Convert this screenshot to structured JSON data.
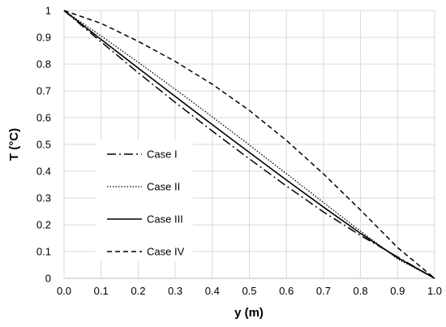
{
  "chart_data": {
    "type": "line",
    "xlabel": "y (m)",
    "ylabel": "T (°C)",
    "xlim": [
      0,
      1
    ],
    "ylim": [
      0,
      1
    ],
    "x_ticks": [
      "0.0",
      "0.1",
      "0.2",
      "0.3",
      "0.4",
      "0.5",
      "0.6",
      "0.7",
      "0.8",
      "0.9",
      "1.0"
    ],
    "y_ticks": [
      "0",
      "0.1",
      "0.2",
      "0.3",
      "0.4",
      "0.5",
      "0.6",
      "0.7",
      "0.8",
      "0.9",
      "1"
    ],
    "grid": "vertical and horizontal",
    "legend_position": "left-center",
    "x": [
      0,
      0.1,
      0.2,
      0.3,
      0.4,
      0.5,
      0.6,
      0.7,
      0.8,
      0.9,
      1.0
    ],
    "series": [
      {
        "name": "Case I",
        "style": "dash-dot",
        "values": [
          1.0,
          0.883,
          0.768,
          0.657,
          0.55,
          0.446,
          0.345,
          0.248,
          0.16,
          0.08,
          0.0
        ]
      },
      {
        "name": "Case II",
        "style": "dotted",
        "values": [
          1.0,
          0.905,
          0.807,
          0.706,
          0.603,
          0.498,
          0.391,
          0.283,
          0.176,
          0.072,
          0.0
        ]
      },
      {
        "name": "Case III",
        "style": "solid",
        "values": [
          1.0,
          0.892,
          0.785,
          0.679,
          0.574,
          0.47,
          0.367,
          0.266,
          0.168,
          0.077,
          0.0
        ]
      },
      {
        "name": "Case IV",
        "style": "dashed",
        "values": [
          1.0,
          0.952,
          0.885,
          0.81,
          0.725,
          0.627,
          0.515,
          0.39,
          0.255,
          0.115,
          0.0
        ]
      }
    ]
  }
}
